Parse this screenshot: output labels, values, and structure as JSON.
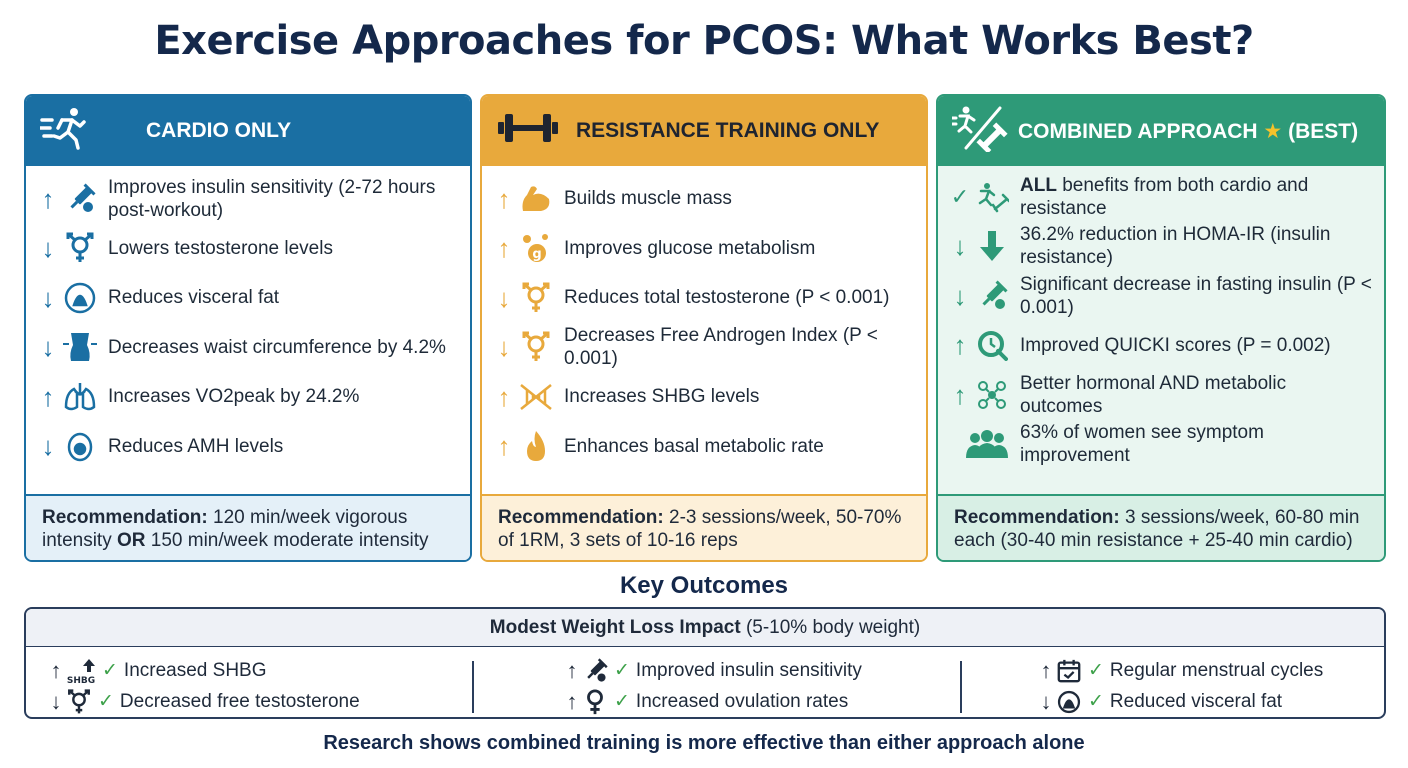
{
  "title": "Exercise Approaches for PCOS: What Works Best?",
  "panels": [
    {
      "header": "CARDIO ONLY",
      "header_icon": "running-person-icon",
      "color": "#1a6fa3",
      "items": [
        {
          "dir": "↑",
          "icon": "insulin-syringe-icon",
          "text": "Improves insulin sensitivity (2-72 hours post-workout)"
        },
        {
          "dir": "↓",
          "icon": "gender-symbol-icon",
          "text": "Lowers testosterone levels"
        },
        {
          "dir": "↓",
          "icon": "visceral-fat-icon",
          "text": "Reduces visceral fat"
        },
        {
          "dir": "↓",
          "icon": "waist-icon",
          "text": "Decreases waist circumference by 4.2%"
        },
        {
          "dir": "↑",
          "icon": "lungs-icon",
          "text": "Increases VO2peak by 24.2%"
        },
        {
          "dir": "↓",
          "icon": "ovary-egg-icon",
          "text": "Reduces AMH levels"
        }
      ],
      "rec_label": "Recommendation:",
      "rec_text_1": " 120 min/week vigorous intensity ",
      "rec_bold": "OR",
      "rec_text_2": " 150 min/week moderate intensity"
    },
    {
      "header": "RESISTANCE TRAINING ONLY",
      "header_icon": "dumbbell-icon",
      "color": "#e8a93c",
      "items": [
        {
          "dir": "↑",
          "icon": "flexed-arm-icon",
          "text": "Builds muscle mass"
        },
        {
          "dir": "↑",
          "icon": "glucose-icon",
          "text": "Improves glucose metabolism"
        },
        {
          "dir": "↓",
          "icon": "gender-symbol-icon",
          "text": "Reduces total testosterone (P < 0.001)"
        },
        {
          "dir": "↓",
          "icon": "gender-symbol-icon",
          "text": "Decreases Free Androgen Index (P < 0.001)"
        },
        {
          "dir": "↑",
          "icon": "dna-icon",
          "text": "Increases SHBG levels"
        },
        {
          "dir": "↑",
          "icon": "flame-icon",
          "text": "Enhances basal metabolic rate"
        }
      ],
      "rec_label": "Recommendation:",
      "rec_text_1": " 2-3 sessions/week, 50-70% of 1RM, 3 sets of 10-16 reps",
      "rec_bold": "",
      "rec_text_2": ""
    },
    {
      "header": "COMBINED APPROACH",
      "header_star": "★",
      "header_suffix": "(BEST)",
      "header_icon": "run-and-dumbbell-icon",
      "color": "#2e9a78",
      "items": [
        {
          "dir": "✓",
          "icon": "runner-dumbbell-icon",
          "bold": "ALL",
          "text": " benefits from both cardio and resistance"
        },
        {
          "dir": "↓",
          "icon": "down-arrow-icon",
          "text": "36.2% reduction in HOMA-IR (insulin resistance)"
        },
        {
          "dir": "↓",
          "icon": "insulin-syringe-icon",
          "text": "Significant decrease in fasting insulin (P < 0.001)"
        },
        {
          "dir": "↑",
          "icon": "magnifier-q-icon",
          "text": "Improved QUICKI scores (P = 0.002)"
        },
        {
          "dir": "↑",
          "icon": "hormone-molecules-icon",
          "text": "Better hormonal AND metabolic outcomes"
        },
        {
          "dir": "",
          "icon": "women-group-icon",
          "text": "63% of women see symptom improvement"
        }
      ],
      "rec_label": "Recommendation:",
      "rec_text_1": " 3 sessions/week, 60-80 min each (30-40 min resistance + 25-40 min cardio)",
      "rec_bold": "",
      "rec_text_2": ""
    }
  ],
  "key_outcomes": {
    "title": "Key Outcomes",
    "header_bold": "Modest Weight Loss Impact",
    "header_rest": " (5-10% body weight)",
    "columns": [
      [
        {
          "dir": "↑",
          "icon": "shbg-arrow-icon",
          "icon_text": "SHBG",
          "text": "Increased SHBG"
        },
        {
          "dir": "↓",
          "icon": "gender-symbol-icon",
          "text": "Decreased free testosterone"
        }
      ],
      [
        {
          "dir": "↑",
          "icon": "insulin-syringe-icon",
          "text": "Improved insulin sensitivity"
        },
        {
          "dir": "↑",
          "icon": "female-symbol-icon",
          "text": "Increased ovulation rates"
        }
      ],
      [
        {
          "dir": "↑",
          "icon": "calendar-check-icon",
          "text": "Regular menstrual cycles"
        },
        {
          "dir": "↓",
          "icon": "visceral-fat-icon",
          "text": "Reduced visceral fat"
        }
      ]
    ]
  },
  "footer": "Research shows combined training is more effective than either approach alone"
}
